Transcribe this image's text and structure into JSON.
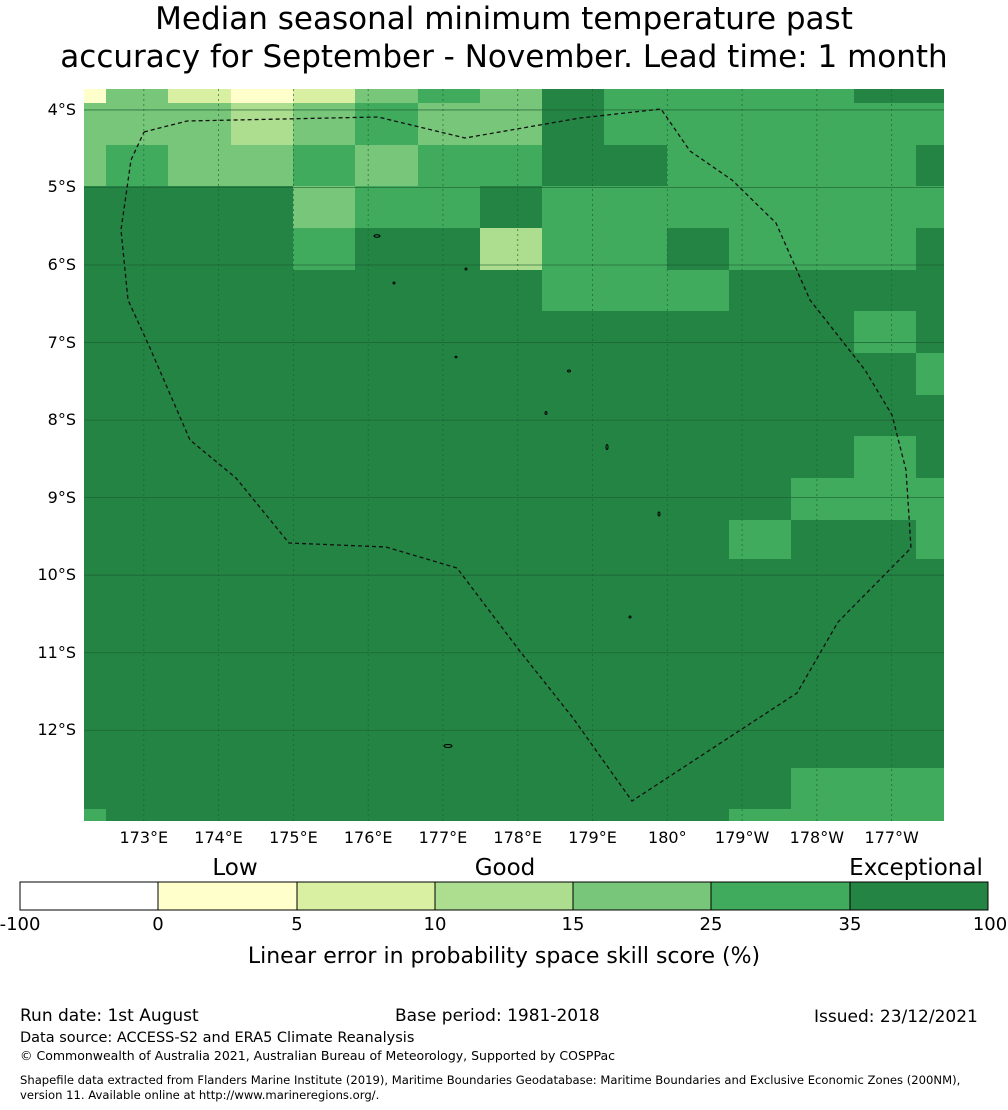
{
  "title": {
    "line1": "Median seasonal minimum temperature past",
    "line2": "accuracy for September - November. Lead time: 1 month"
  },
  "map": {
    "lat_labels": [
      "4°S",
      "5°S",
      "6°S",
      "7°S",
      "8°S",
      "9°S",
      "10°S",
      "11°S",
      "12°S"
    ],
    "lat_values": [
      -4,
      -5,
      -6,
      -7,
      -8,
      -9,
      -10,
      -11,
      -12
    ],
    "lon_labels": [
      "173°E",
      "174°E",
      "175°E",
      "176°E",
      "177°E",
      "178°E",
      "179°E",
      "180°",
      "179°W",
      "178°W",
      "177°W"
    ],
    "lon_values": [
      173,
      174,
      175,
      176,
      177,
      178,
      179,
      180,
      181,
      182,
      183
    ],
    "lon_range": [
      172.2,
      183.7
    ],
    "lat_range": [
      -13.17,
      -3.73
    ],
    "grid_origin_lon": 172.5,
    "grid_origin_lat": -3.58,
    "grid_cell_size": 0.833,
    "category_codes_note": "codes map to colorbar bins",
    "cells": [
      "1322555666",
      "4444335556",
      "4455336666",
      "4555555556",
      "4455444666",
      "6666664666",
      "6666666666",
      "6666666666",
      "6666666666",
      "6666666666",
      "6666666666",
      "6666666666"
    ],
    "cell_grid": [
      "13322445577766666666666666666666666666666666666666666666666666666666666666",
      "14444444445555666666666666666666666666666666666666666666666666666666666666"
    ]
  },
  "colorbar": {
    "categories": [
      "Low",
      "Good",
      "Exceptional"
    ],
    "ticks": [
      "-100",
      "0",
      "5",
      "10",
      "15",
      "25",
      "35",
      "100"
    ],
    "colors": [
      "#ffffff",
      "#ffffcc",
      "#d9f0a3",
      "#addd8e",
      "#78c679",
      "#41ab5d",
      "#238443"
    ],
    "label": "Linear error in probability space skill score (%)"
  },
  "footer": {
    "run_date": "Run date: 1st August",
    "base_period": "Base period: 1981-2018",
    "issued": "Issued: 23/12/2021",
    "data_source": "Data source: ACCESS-S2 and ERA5 Climate Reanalysis",
    "copyright": "© Commonwealth of Australia 2021, Australian Bureau of Meteorology, Supported by COSPPac",
    "shapefile_line1": "Shapefile data extracted from Flanders Marine Institute (2019), Maritime Boundaries Geodatabase: Maritime Boundaries and Exclusive Economic Zones (200NM),",
    "shapefile_line2": "version 11. Available online at http://www.marineregions.org/."
  }
}
